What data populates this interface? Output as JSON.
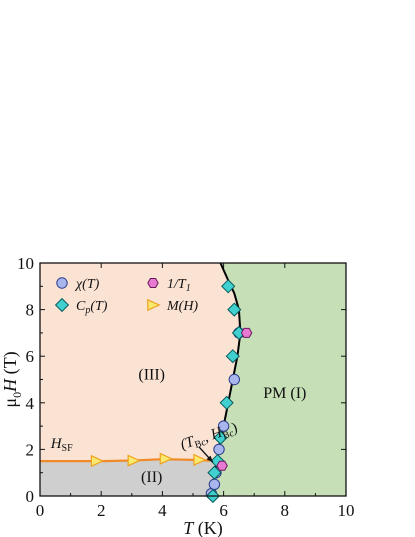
{
  "chart_data": {
    "type": "scatter",
    "title": "",
    "xlabel": {
      "symbol": "T",
      "unit": " (K)"
    },
    "ylabel": {
      "prefix": "μ",
      "sub": "0",
      "symbol": "H",
      "unit": " (T)"
    },
    "xlim": [
      0,
      10
    ],
    "ylim": [
      0,
      10
    ],
    "xticks": [
      0,
      2,
      4,
      6,
      8,
      10
    ],
    "yticks": [
      0,
      2,
      4,
      6,
      8,
      10
    ],
    "colors": {
      "phase_III": "#fbe3d4",
      "phase_II": "#cfcfcf",
      "phase_PM": "#c6dfb6",
      "chi": "#a9b6ee",
      "Cp": "#40d0cf",
      "T1": "#e879d2",
      "M": "#f8ea6e",
      "M_edge": "#f0a020",
      "hsf_line": "#f08a28",
      "boundary": "#000000"
    },
    "legend": [
      {
        "id": "chi",
        "marker": "circle",
        "label_main": "χ(T)",
        "label_sub": ""
      },
      {
        "id": "T1",
        "marker": "hexagon",
        "label_main": "1/T",
        "label_sub": "1"
      },
      {
        "id": "Cp",
        "marker": "diamond",
        "label_main": "C",
        "label_sub": "p",
        "label_tail": "(T)"
      },
      {
        "id": "M",
        "marker": "triangle-right",
        "label_main": "M(H)",
        "label_sub": ""
      }
    ],
    "series": [
      {
        "id": "chi",
        "marker": "circle",
        "x": [
          5.6,
          5.7,
          5.75,
          5.85,
          6.0,
          6.35,
          6.5
        ],
        "y": [
          0.1,
          0.5,
          1.0,
          2.0,
          3.0,
          5.0,
          7.0
        ]
      },
      {
        "id": "Cp",
        "marker": "diamond",
        "x": [
          5.65,
          5.7,
          5.8,
          5.9,
          6.1,
          6.3,
          6.5,
          6.35,
          6.15
        ],
        "y": [
          0.0,
          1.0,
          1.5,
          2.5,
          4.0,
          6.0,
          7.0,
          8.0,
          9.0
        ]
      },
      {
        "id": "T1",
        "marker": "hexagon",
        "x": [
          5.95,
          6.75
        ],
        "y": [
          1.3,
          7.0
        ]
      },
      {
        "id": "M",
        "marker": "triangle-right",
        "x": [
          1.85,
          3.05,
          4.1,
          5.2
        ],
        "y": [
          1.5,
          1.52,
          1.6,
          1.55
        ]
      }
    ],
    "phase_boundary": {
      "x": [
        5.65,
        5.7,
        5.78,
        5.9,
        6.0,
        6.15,
        6.3,
        6.45,
        6.55,
        6.5,
        6.35,
        6.1,
        5.9
      ],
      "y": [
        0.0,
        1.0,
        1.5,
        2.5,
        3.0,
        4.0,
        5.0,
        6.0,
        7.0,
        8.0,
        8.7,
        9.4,
        10.0
      ]
    },
    "hsf_line": {
      "x": [
        0,
        1,
        2,
        3,
        4,
        5,
        5.55
      ],
      "y": [
        1.5,
        1.5,
        1.5,
        1.52,
        1.58,
        1.55,
        1.52
      ]
    },
    "regions": [
      {
        "id": "III",
        "label": "(III)",
        "x": 3.65,
        "y": 5.0
      },
      {
        "id": "II",
        "label": "(II)",
        "x": 3.65,
        "y": 0.6
      },
      {
        "id": "PM",
        "label": "PM (I)",
        "x": 8.0,
        "y": 4.2
      }
    ],
    "annotations": [
      {
        "id": "hsf",
        "main": "H",
        "sub": "SF",
        "x": 0.35,
        "y": 2.05
      },
      {
        "id": "tbc",
        "text_parts": [
          "(T",
          "Bc",
          ", H",
          "Bc",
          ")"
        ],
        "x": 4.65,
        "y": 2.0,
        "rotate": -18,
        "arrow_from": [
          5.2,
          2.1
        ],
        "arrow_to": [
          5.65,
          1.45
        ]
      }
    ]
  }
}
